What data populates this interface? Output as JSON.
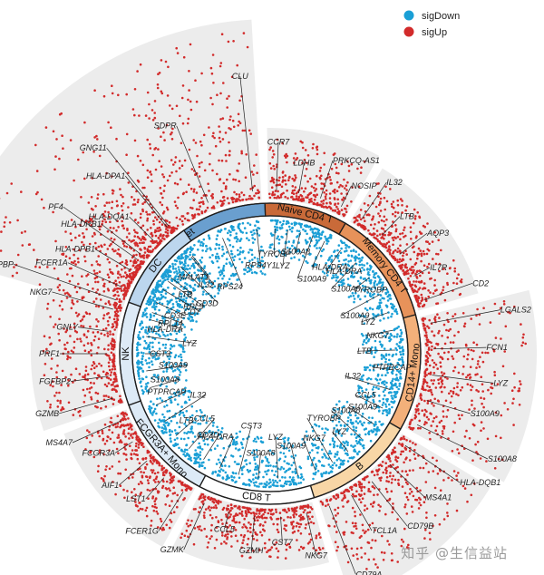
{
  "watermark": "知乎 @生信益站",
  "chart_data": {
    "type": "scatter",
    "title": "",
    "layout": "circular",
    "legend": {
      "placement": "top-right",
      "entries": [
        {
          "name": "sigDown",
          "color": "#1a9fd6"
        },
        {
          "name": "sigUp",
          "color": "#d22b2b"
        }
      ]
    },
    "series": [
      {
        "name": "sigDown",
        "color": "#1a9fd6"
      },
      {
        "name": "sigUp",
        "color": "#d22b2b"
      }
    ],
    "groups": [
      {
        "name": "Platelet",
        "start": -75,
        "end": -2,
        "color": "#6a9fcf",
        "up_extent": 185,
        "down_extent": 60,
        "up_labels": [
          "PPBP",
          "PF4",
          "GNG11",
          "SDPR",
          "CLU"
        ],
        "down_labels": [
          "RPL14",
          "RPL9",
          "MALAT1",
          "RPS24",
          "RPS4Y1"
        ]
      },
      {
        "name": "Naive CD4 T",
        "start": -2,
        "end": 30,
        "color": "#c96a39",
        "up_extent": 65,
        "down_extent": 40,
        "up_labels": [
          "CCR7",
          "LDHB",
          "PRKCQ-AS1",
          "NOSIP"
        ],
        "down_labels": [
          "TYROBP",
          "LYZ",
          "S100A8",
          "S100A9",
          "HLA-DRA"
        ]
      },
      {
        "name": "Memory CD4 T",
        "start": 30,
        "end": 75,
        "color": "#e7925a",
        "up_extent": 55,
        "down_extent": 40,
        "up_labels": [
          "IL32",
          "LTB",
          "AQP3",
          "IL7R",
          "CD2"
        ],
        "down_labels": [
          "HLA-DRA",
          "S100A8",
          "TYROBP",
          "S100A9",
          "LYZ"
        ]
      },
      {
        "name": "CD14+ Mono",
        "start": 75,
        "end": 120,
        "color": "#f3b07a",
        "up_extent": 110,
        "down_extent": 45,
        "up_labels": [
          "LGALS2",
          "FCN1",
          "LYZ",
          "S100A9",
          "S100A8"
        ],
        "down_labels": [
          "NKG7",
          "LTB",
          "PTPRCAP",
          "IL32",
          "CCL5"
        ]
      },
      {
        "name": "B",
        "start": 120,
        "end": 163,
        "color": "#f8d6a6",
        "up_extent": 100,
        "down_extent": 55,
        "up_labels": [
          "HLA-DQB1",
          "MS4A1",
          "CD79B",
          "TCL1A",
          "CD79A"
        ],
        "down_labels": [
          "S100A9",
          "S100A8",
          "LYZ",
          "TYROBP",
          "NKG7"
        ]
      },
      {
        "name": "CD8 T",
        "start": 163,
        "end": 208,
        "color": "#ffffff",
        "up_extent": 55,
        "down_extent": 55,
        "up_labels": [
          "NKG7",
          "CST7",
          "GZMH",
          "CCL5",
          "GZMK"
        ],
        "down_labels": [
          "S100A9",
          "LYZ",
          "S100A8",
          "CST3",
          "HLA-DRA"
        ]
      },
      {
        "name": "FCGR3A+ Mono",
        "start": 208,
        "end": 250,
        "color": "#ddeaf6",
        "up_extent": 60,
        "down_extent": 50,
        "up_labels": [
          "FCER1G",
          "LST1",
          "AIF1",
          "FCGR3A",
          "MS4A7"
        ],
        "down_labels": [
          "CD3D",
          "CCL5",
          "LTB",
          "IL32",
          "PTPRCAP"
        ]
      },
      {
        "name": "NK",
        "start": 250,
        "end": 290,
        "color": "#ddeaf6",
        "up_extent": 80,
        "down_extent": 55,
        "up_labels": [
          "GZMB",
          "FGFBP2",
          "PRF1",
          "GNLY",
          "NKG7"
        ],
        "down_labels": [
          "S100A8",
          "S100A9",
          "CST3",
          "LYZ",
          "HLA-DRA"
        ]
      },
      {
        "name": "DC",
        "start": 290,
        "end": 325,
        "color": "#bcd6ee",
        "up_extent": 85,
        "down_extent": 60,
        "up_labels": [
          "FCER1A",
          "HLA-DPB1",
          "HLA-DRB1",
          "HLA-DQA1",
          "HLA-DPA1"
        ],
        "down_labels": [
          "CD3E",
          "CD7",
          "LTB",
          "CD3D",
          "IL32"
        ]
      }
    ]
  }
}
